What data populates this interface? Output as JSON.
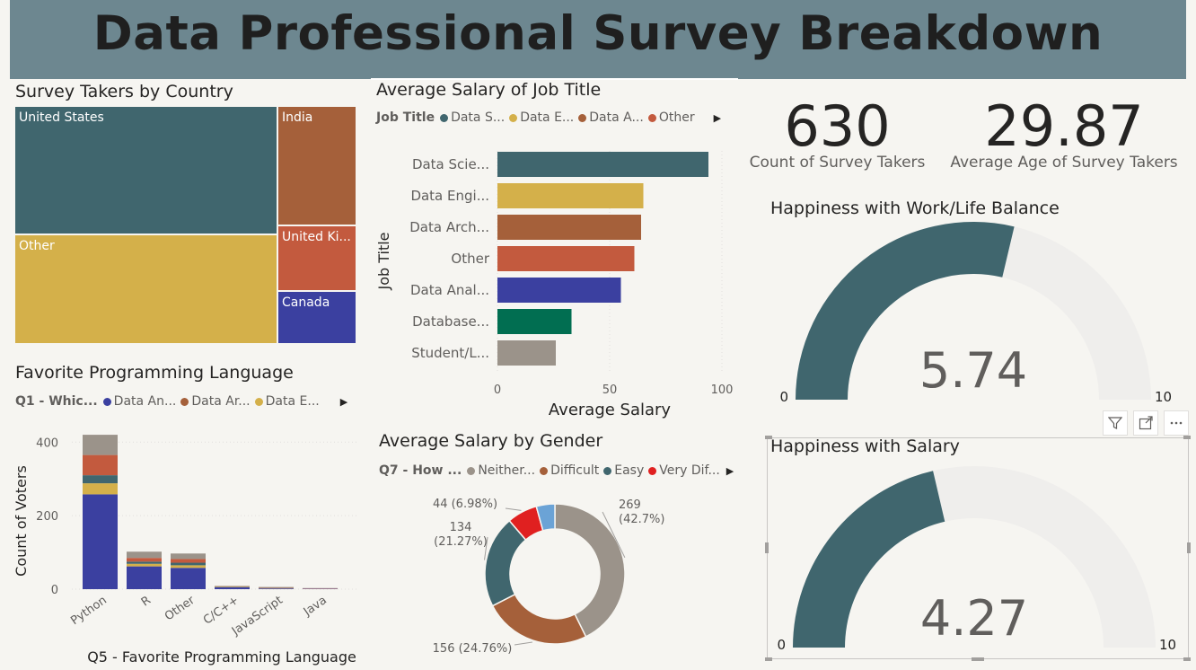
{
  "dashboard": {
    "title": "Data Professional Survey Breakdown"
  },
  "country": {
    "title": "Survey Takers by Country",
    "items": [
      {
        "label": "United States",
        "color": "#40666e"
      },
      {
        "label": "Other",
        "color": "#d4b04a"
      },
      {
        "label": "India",
        "color": "#a5603a"
      },
      {
        "label": "United Ki...",
        "color": "#c35a3e"
      },
      {
        "label": "Canada",
        "color": "#3b40a0"
      }
    ]
  },
  "job_salary": {
    "title": "Average Salary of Job Title",
    "legend_title": "Job Title",
    "legend_items": [
      {
        "label": "Data S...",
        "color": "#40666e"
      },
      {
        "label": "Data E...",
        "color": "#d4b04a"
      },
      {
        "label": "Data A...",
        "color": "#a5603a"
      },
      {
        "label": "Other",
        "color": "#c35a3e"
      }
    ],
    "legend_arrow": "▶"
  },
  "language": {
    "title": "Favorite Programming Language",
    "legend_title": "Q1 - Whic...",
    "legend_items": [
      {
        "label": "Data An...",
        "color": "#3b40a0"
      },
      {
        "label": "Data Ar...",
        "color": "#a5603a"
      },
      {
        "label": "Data E...",
        "color": "#d4b04a"
      }
    ],
    "legend_arrow": "▶"
  },
  "gender": {
    "title": "Average Salary by Gender",
    "legend_title": "Q7 - How ...",
    "legend_items": [
      {
        "label": "Neither...",
        "color": "#9b938a"
      },
      {
        "label": "Difficult",
        "color": "#a5603a"
      },
      {
        "label": "Easy",
        "color": "#40666e"
      },
      {
        "label": "Very Dif...",
        "color": "#e02020"
      }
    ],
    "legend_arrow": "▶"
  },
  "kpis": {
    "count_value": "630",
    "count_label": "Count of Survey Takers",
    "age_value": "29.87",
    "age_label": "Average Age of Survey Takers"
  },
  "gauge_worklife": {
    "title": "Happiness with Work/Life Balance",
    "value": 5.74,
    "value_text": "5.74",
    "min": "0",
    "max": "10",
    "fill_color": "#40666e",
    "track_color": "#efeeec"
  },
  "gauge_salary": {
    "title": "Happiness with Salary",
    "value": 4.27,
    "value_text": "4.27",
    "min": "0",
    "max": "10",
    "fill_color": "#40666e",
    "track_color": "#efeeec"
  },
  "visual_header": {
    "filter_icon": "filter-icon",
    "focus_icon": "focus-mode-icon",
    "more_icon": "more-options-icon"
  },
  "chart_data": [
    {
      "type": "bar",
      "orientation": "horizontal",
      "title": "Average Salary of Job Title",
      "xlabel": "Average Salary",
      "ylabel": "Job Title",
      "categories": [
        "Data Scie...",
        "Data Engi...",
        "Data Arch...",
        "Other",
        "Data Anal...",
        "Database...",
        "Student/L..."
      ],
      "values": [
        94,
        65,
        64,
        61,
        55,
        33,
        26
      ],
      "colors": [
        "#40666e",
        "#d4b04a",
        "#a5603a",
        "#c35a3e",
        "#3b40a0",
        "#016e51",
        "#9b938a"
      ],
      "xticks": [
        "0",
        "50",
        "100"
      ],
      "xlim": [
        0,
        100
      ]
    },
    {
      "type": "bar",
      "stacked": true,
      "title": "Favorite Programming Language",
      "xlabel": "Q5 - Favorite Programming Language",
      "ylabel": "Count of Voters",
      "categories": [
        "Python",
        "R",
        "Other",
        "C/C++",
        "JavaScript",
        "Java"
      ],
      "yticks": [
        "0",
        "200",
        "400"
      ],
      "ylim": [
        0,
        450
      ],
      "series": [
        {
          "color": "#3b40a0",
          "values": [
            258,
            62,
            58,
            5,
            2,
            1
          ]
        },
        {
          "color": "#d4b04a",
          "values": [
            30,
            7,
            7,
            1,
            1,
            0
          ]
        },
        {
          "color": "#40666e",
          "values": [
            22,
            6,
            7,
            1,
            1,
            0
          ]
        },
        {
          "color": "#c35a3e",
          "values": [
            55,
            10,
            10,
            1,
            1,
            1
          ]
        },
        {
          "color": "#9b938a",
          "values": [
            55,
            17,
            15,
            1,
            1,
            1
          ]
        }
      ]
    },
    {
      "type": "pie",
      "donut": true,
      "title": "Average Salary by Gender",
      "slices": [
        {
          "label": "269\n(42.7%)",
          "value": 269,
          "color": "#9b938a"
        },
        {
          "label": "156 (24.76%)",
          "value": 156,
          "color": "#a5603a"
        },
        {
          "label": "134\n(21.27%)",
          "value": 134,
          "color": "#40666e"
        },
        {
          "label": "44 (6.98%)",
          "value": 44,
          "color": "#e02020"
        },
        {
          "label": "",
          "value": 27,
          "color": "#6ba3d6"
        }
      ]
    }
  ]
}
